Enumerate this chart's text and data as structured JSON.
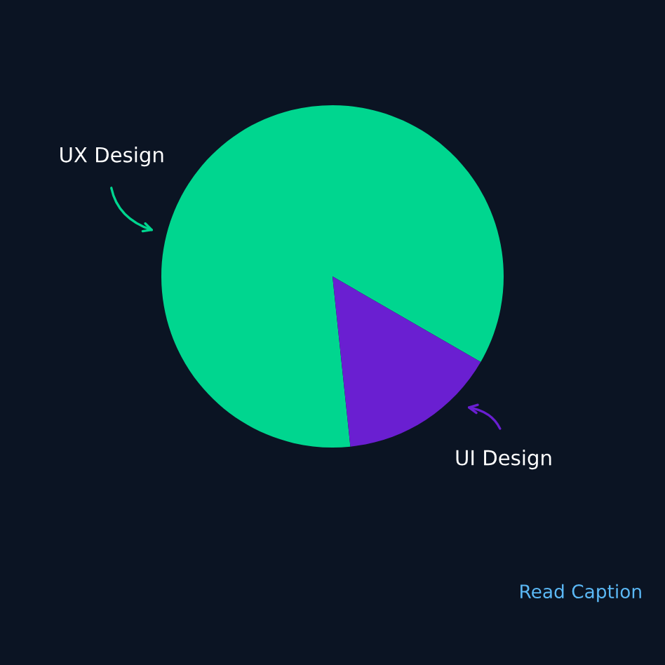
{
  "chart_data": {
    "type": "pie",
    "categories": [
      "UX Design",
      "UI Design"
    ],
    "values": [
      85,
      15
    ],
    "colors": [
      "#00d68f",
      "#6a1fd1"
    ],
    "annotations": [
      "Read Caption"
    ]
  }
}
